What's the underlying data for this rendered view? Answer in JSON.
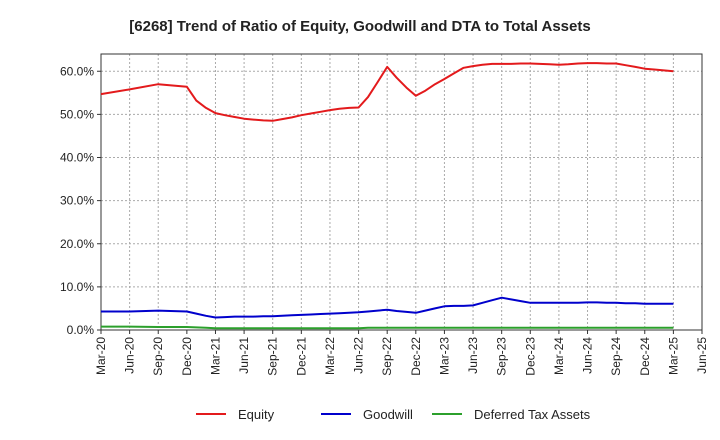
{
  "chart_data": {
    "type": "line",
    "title": "[6268]  Trend of Ratio of Equity, Goodwill and DTA to Total Assets",
    "xlabel": "",
    "ylabel": "",
    "x_tick_labels": [
      "Mar-20",
      "Jun-20",
      "Sep-20",
      "Dec-20",
      "Mar-21",
      "Jun-21",
      "Sep-21",
      "Dec-21",
      "Mar-22",
      "Jun-22",
      "Sep-22",
      "Dec-22",
      "Mar-23",
      "Jun-23",
      "Sep-23",
      "Dec-23",
      "Mar-24",
      "Jun-24",
      "Sep-24",
      "Dec-24",
      "Mar-25",
      "Jun-25"
    ],
    "y_tick_labels": [
      "0.0%",
      "10.0%",
      "20.0%",
      "30.0%",
      "40.0%",
      "50.0%",
      "60.0%"
    ],
    "y_ticks": [
      0,
      10,
      20,
      30,
      40,
      50,
      60
    ],
    "ylim": [
      0,
      64
    ],
    "grid": true,
    "legend_position": "bottom",
    "x": [
      0,
      1,
      2,
      3,
      3.33,
      3.67,
      4,
      4.33,
      4.67,
      5,
      5.33,
      5.67,
      6,
      6.33,
      6.67,
      7,
      7.33,
      7.67,
      8,
      8.33,
      8.67,
      9,
      9.33,
      9.67,
      10,
      10.33,
      10.67,
      11,
      11.33,
      11.67,
      12,
      12.33,
      12.67,
      13,
      13.33,
      13.67,
      14,
      14.33,
      14.67,
      15,
      15.33,
      15.67,
      16,
      16.33,
      16.67,
      17,
      17.33,
      17.67,
      18,
      18.33,
      18.67,
      19,
      19.33,
      19.67,
      20
    ],
    "series": [
      {
        "name": "Equity",
        "color": "#e31a1c",
        "values": [
          54.7,
          55.8,
          57.0,
          56.4,
          53.2,
          51.5,
          50.3,
          49.8,
          49.4,
          49.0,
          48.8,
          48.6,
          48.5,
          48.9,
          49.3,
          49.8,
          50.2,
          50.6,
          51.0,
          51.3,
          51.5,
          51.6,
          54.0,
          57.5,
          61.0,
          58.5,
          56.2,
          54.3,
          55.5,
          57.0,
          58.2,
          59.5,
          60.8,
          61.2,
          61.5,
          61.7,
          61.7,
          61.7,
          61.8,
          61.8,
          61.7,
          61.6,
          61.5,
          61.6,
          61.8,
          61.9,
          61.9,
          61.8,
          61.8,
          61.4,
          61.0,
          60.6,
          60.4,
          60.2,
          60.0
        ]
      },
      {
        "name": "Goodwill",
        "color": "#0000cc",
        "values": [
          4.3,
          4.3,
          4.5,
          4.3,
          3.8,
          3.3,
          2.9,
          3.0,
          3.1,
          3.1,
          3.1,
          3.2,
          3.2,
          3.3,
          3.4,
          3.5,
          3.6,
          3.7,
          3.8,
          3.9,
          4.0,
          4.1,
          4.3,
          4.5,
          4.7,
          4.4,
          4.2,
          4.0,
          4.5,
          5.0,
          5.5,
          5.6,
          5.6,
          5.7,
          6.3,
          6.9,
          7.5,
          7.1,
          6.7,
          6.3,
          6.3,
          6.3,
          6.3,
          6.3,
          6.3,
          6.4,
          6.4,
          6.3,
          6.3,
          6.2,
          6.2,
          6.1,
          6.1,
          6.1,
          6.1
        ]
      },
      {
        "name": "Deferred Tax Assets",
        "color": "#2ca02c",
        "values": [
          0.8,
          0.8,
          0.7,
          0.7,
          0.6,
          0.5,
          0.4,
          0.4,
          0.4,
          0.4,
          0.4,
          0.4,
          0.4,
          0.4,
          0.4,
          0.4,
          0.4,
          0.4,
          0.4,
          0.4,
          0.4,
          0.4,
          0.5,
          0.5,
          0.5,
          0.5,
          0.5,
          0.5,
          0.5,
          0.5,
          0.5,
          0.5,
          0.5,
          0.5,
          0.5,
          0.5,
          0.5,
          0.5,
          0.5,
          0.5,
          0.5,
          0.5,
          0.5,
          0.5,
          0.5,
          0.5,
          0.5,
          0.5,
          0.5,
          0.5,
          0.5,
          0.5,
          0.5,
          0.5,
          0.5
        ]
      }
    ]
  }
}
